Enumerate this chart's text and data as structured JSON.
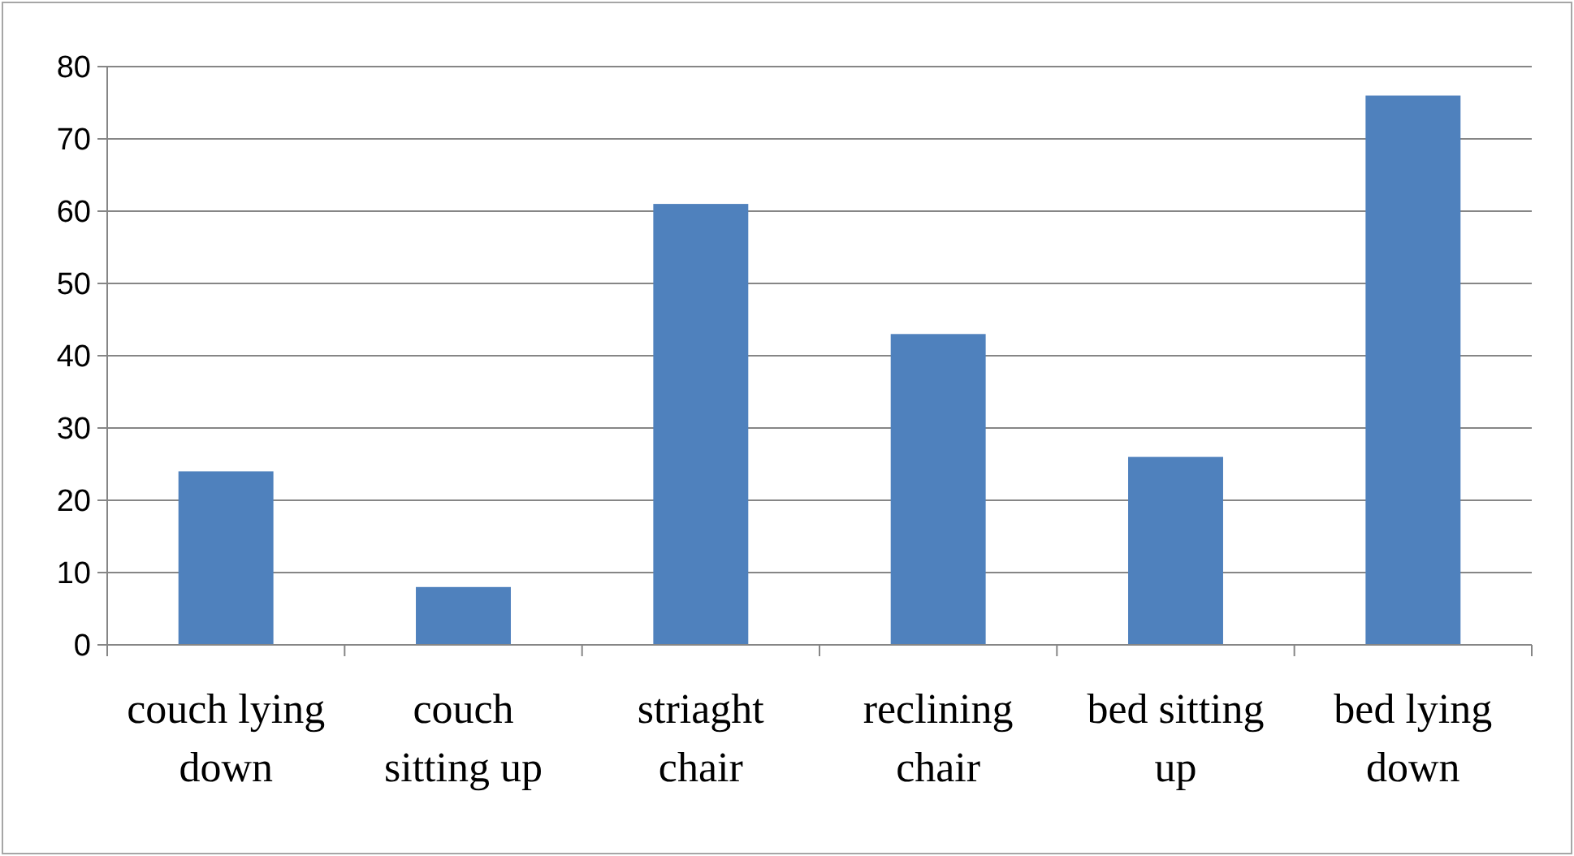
{
  "chart_data": {
    "type": "bar",
    "categories": [
      "couch lying down",
      "couch sitting up",
      "striaght chair",
      "reclining chair",
      "bed sitting up",
      "bed lying down"
    ],
    "values": [
      24,
      8,
      61,
      43,
      26,
      76
    ],
    "color": "#4f81bd",
    "ylim": [
      0,
      80
    ],
    "yticks": [
      0,
      10,
      20,
      30,
      40,
      50,
      60,
      70,
      80
    ],
    "grid": "y"
  }
}
